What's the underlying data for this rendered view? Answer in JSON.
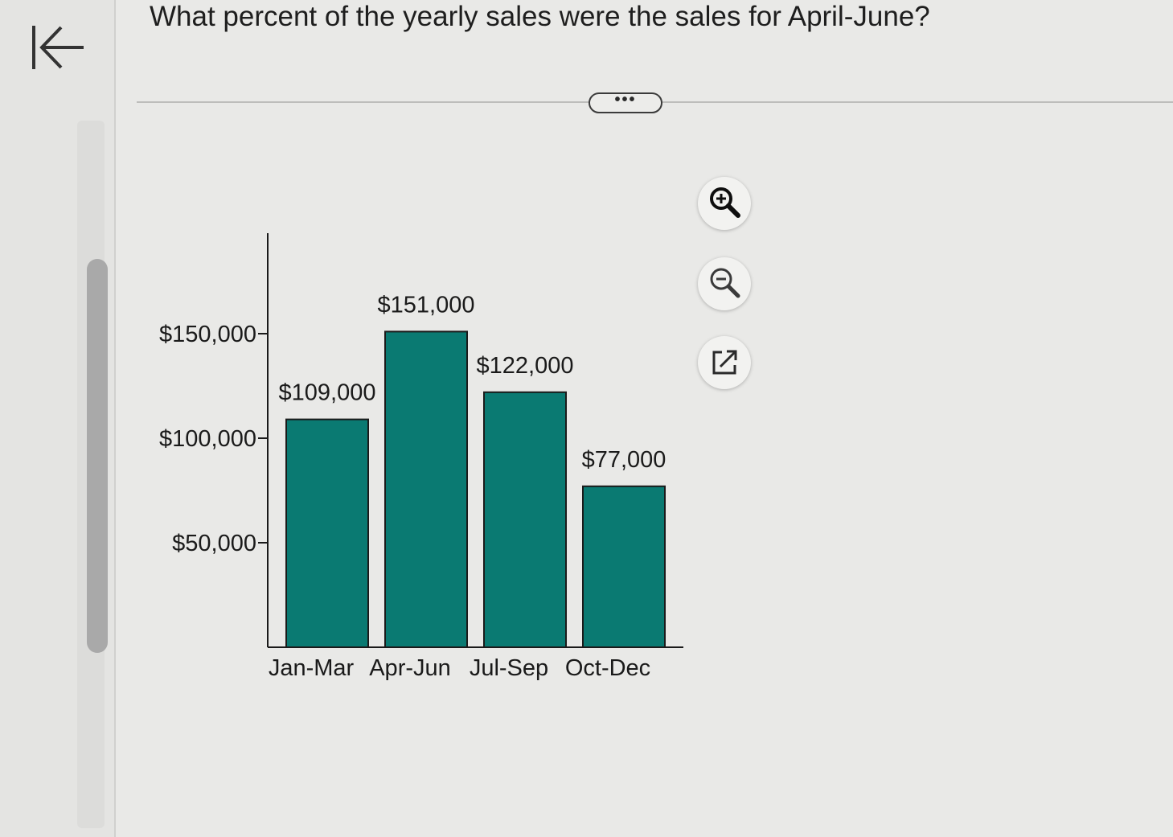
{
  "question": {
    "text": "What percent of the yearly sales were the sales for April-June?"
  },
  "toolbar": {
    "more_label": "•••",
    "icons": [
      "zoom-in-icon",
      "zoom-out-icon",
      "open-external-icon"
    ]
  },
  "colors": {
    "bar": "#0a7a72",
    "bar_stroke": "#1a1a1a",
    "axis": "#1a1a1a"
  },
  "chart_data": {
    "type": "bar",
    "title": "",
    "xlabel": "",
    "ylabel": "",
    "categories": [
      "Jan-Mar",
      "Apr-Jun",
      "Jul-Sep",
      "Oct-Dec"
    ],
    "values": [
      109000,
      151000,
      122000,
      77000
    ],
    "data_labels": [
      "$109,000",
      "$151,000",
      "$122,000",
      "$77,000"
    ],
    "yticks": [
      50000,
      100000,
      150000
    ],
    "ytick_labels": [
      "$50,000",
      "$100,000",
      "$150,000"
    ],
    "ylim": [
      0,
      200000
    ],
    "grid": false,
    "legend": "none"
  }
}
